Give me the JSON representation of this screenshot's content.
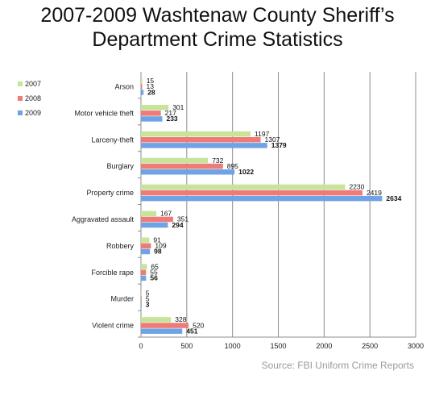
{
  "title_line1": "2007-2009 Washtenaw County Sheriff’s",
  "title_line2": "Department Crime Statistics",
  "source": "Source: FBI Uniform Crime Reports",
  "chart_data": {
    "type": "bar",
    "orientation": "horizontal",
    "categories": [
      "Arson",
      "Motor vehicle theft",
      "Larceny-theft",
      "Burglary",
      "Property crime",
      "Aggravated assault",
      "Robbery",
      "Forcible rape",
      "Murder",
      "Violent crime"
    ],
    "series": [
      {
        "name": "2007",
        "color": "#c6e59a",
        "values": [
          15,
          301,
          1197,
          732,
          2230,
          167,
          91,
          65,
          5,
          328
        ]
      },
      {
        "name": "2008",
        "color": "#ee7b78",
        "values": [
          13,
          217,
          1307,
          895,
          2419,
          351,
          109,
          55,
          5,
          520
        ]
      },
      {
        "name": "2009",
        "color": "#6fa3e6",
        "values": [
          28,
          233,
          1379,
          1022,
          2634,
          294,
          98,
          56,
          3,
          451
        ]
      }
    ],
    "xticks": [
      "0",
      "500",
      "1000",
      "1500",
      "2000",
      "2500",
      "3000"
    ],
    "xlim": [
      0,
      3000
    ],
    "grid": "vertical",
    "legend": "left",
    "bold_series": "2009"
  }
}
